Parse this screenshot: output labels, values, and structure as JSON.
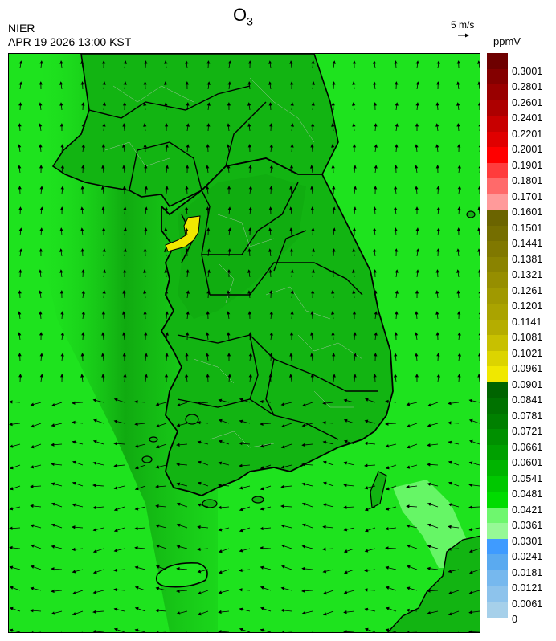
{
  "header": {
    "pollutant": "O",
    "pollutant_sub": "3",
    "agency": "NIER",
    "datetime": "APR 19 2026 13:00 KST"
  },
  "wind_reference": {
    "label": "5 m/s",
    "icon": "arrow-right-icon"
  },
  "colorbar": {
    "unit": "ppmV",
    "levels": [
      "0.3001",
      "0.2801",
      "0.2601",
      "0.2401",
      "0.2201",
      "0.2001",
      "0.1901",
      "0.1801",
      "0.1701",
      "0.1601",
      "0.1501",
      "0.1441",
      "0.1381",
      "0.1321",
      "0.1261",
      "0.1201",
      "0.1141",
      "0.1081",
      "0.1021",
      "0.0961",
      "0.0901",
      "0.0841",
      "0.0781",
      "0.0721",
      "0.0661",
      "0.0601",
      "0.0541",
      "0.0481",
      "0.0421",
      "0.0361",
      "0.0301",
      "0.0241",
      "0.0181",
      "0.0121",
      "0.0061",
      "0"
    ],
    "colors": [
      "#6e0000",
      "#840000",
      "#990000",
      "#ad0000",
      "#c80000",
      "#e00000",
      "#ff0000",
      "#ff3c3c",
      "#ff6a6a",
      "#ff9a9a",
      "#6b6400",
      "#756e00",
      "#807800",
      "#8a8300",
      "#968e00",
      "#a09900",
      "#aaa300",
      "#b5ad00",
      "#c8c000",
      "#dcd400",
      "#f0e800",
      "#006400",
      "#007200",
      "#008000",
      "#009000",
      "#00a000",
      "#00b400",
      "#00c800",
      "#00dc00",
      "#6ef76e",
      "#96f996",
      "#3f9bff",
      "#5aaaf0",
      "#76b8ee",
      "#8dc3ec",
      "#a6d0ea"
    ]
  },
  "map": {
    "colors": {
      "sea": "#1ee31e",
      "land": "#12b412",
      "dark_band": "#0d9d0d",
      "hotspot": "#f0e800",
      "low_patch": "#6ef76e",
      "boundary": "#000000",
      "district_line": "#c8c8c8"
    }
  }
}
